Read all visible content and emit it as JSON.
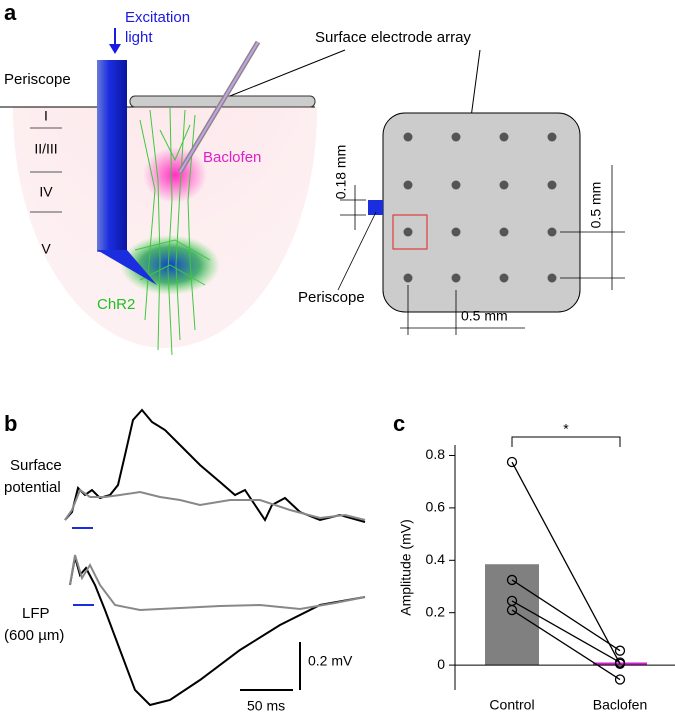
{
  "panel_labels": [
    "a",
    "b",
    "c"
  ],
  "panel_a": {
    "excitation": [
      "Excitation",
      "light"
    ],
    "periscope_top": "Periscope",
    "layers": [
      "I",
      "II/III",
      "IV",
      "V"
    ],
    "baclofen": "Baclofen",
    "chr2": "ChR2",
    "array_title": "Surface electrode array",
    "dist_018": "0.18 mm",
    "dist_05_v": "0.5 mm",
    "periscope_bottom": "Periscope",
    "dist_05_h": "0.5 mm"
  },
  "panel_b": {
    "surface": [
      "Surface",
      "potential"
    ],
    "lfp": [
      "LFP",
      "(600 µm)"
    ],
    "scale_v": "0.2 mV",
    "scale_t": "50 ms"
  },
  "chart_data": {
    "type": "bar",
    "ylabel": "Amplitude (mV)",
    "categories": [
      "Control",
      "Baclofen"
    ],
    "values": [
      0.385,
      0.01
    ],
    "colors": [
      "#808080",
      "#d21fd2"
    ],
    "pairs": [
      [
        0.775,
        0.005
      ],
      [
        0.325,
        0.055
      ],
      [
        0.245,
        0.01
      ],
      [
        0.21,
        -0.055
      ]
    ],
    "significance": "*",
    "ylim": [
      -0.095,
      0.84
    ],
    "yticks": [
      0,
      0.2,
      0.4,
      0.6,
      0.8
    ]
  }
}
